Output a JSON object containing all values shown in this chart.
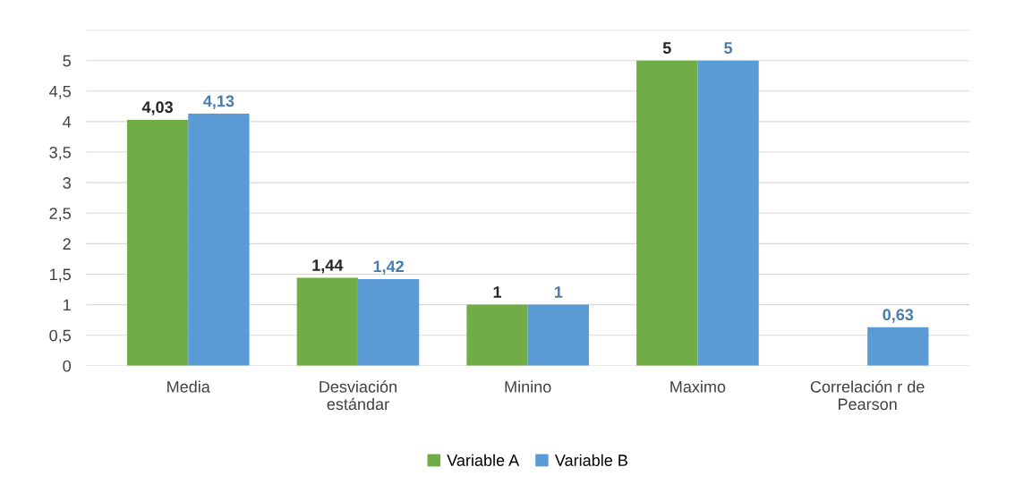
{
  "chart_data": {
    "type": "bar",
    "categories": [
      "Media",
      "Desviación\nestándar",
      "Minino",
      "Maximo",
      "Correlación r de\nPearson"
    ],
    "series": [
      {
        "name": "Variable A",
        "color": "#70ad47",
        "values": [
          4.03,
          1.44,
          1,
          5,
          null
        ],
        "value_labels": [
          "4,03",
          "1,44",
          "1",
          "5",
          null
        ]
      },
      {
        "name": "Variable B",
        "color": "#5b9bd5",
        "values": [
          4.13,
          1.42,
          1,
          5,
          0.63
        ],
        "value_labels": [
          "4,13",
          "1,42",
          "1",
          "5",
          "0,63"
        ]
      }
    ],
    "ylim": [
      0,
      5.5
    ],
    "yticks": [
      0,
      {
        "value": 0.5,
        "label": "0,5"
      },
      1,
      {
        "value": 1.5,
        "label": "1,5"
      },
      2,
      {
        "value": 2.5,
        "label": "2,5"
      },
      3,
      {
        "value": 3.5,
        "label": "3,5"
      },
      4,
      {
        "value": 4.5,
        "label": "4,5"
      },
      5,
      {
        "value": 5.5,
        "label": null
      }
    ],
    "grid": "y",
    "legend": "bottom"
  }
}
